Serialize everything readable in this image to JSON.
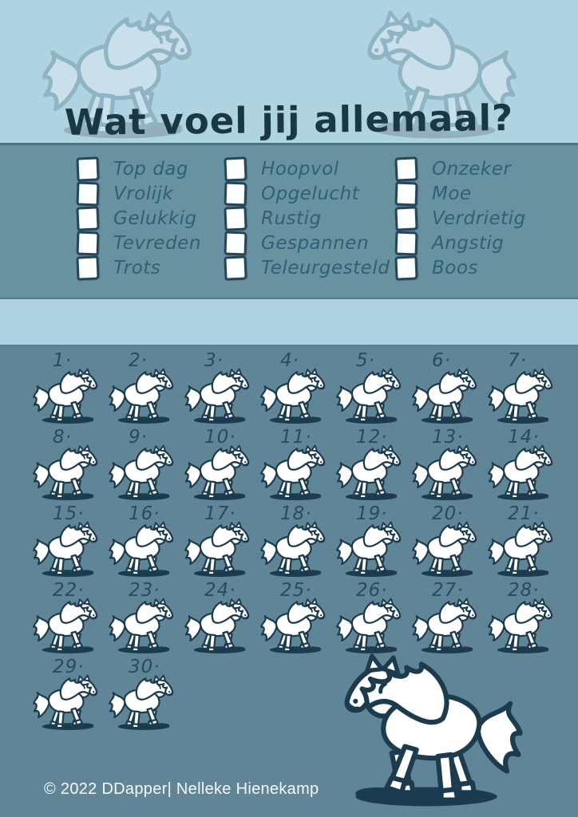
{
  "title": "Wat voel jij allemaal?",
  "copyright": "© 2022 DDapper| Nelleke Hienekamp",
  "checklist": {
    "columns": [
      [
        "Top dag",
        "Vrolijk",
        "Gelukkig",
        "Tevreden",
        "Trots"
      ],
      [
        "Hoopvol",
        "Opgelucht",
        "Rustig",
        "Gespannen",
        "Teleurgesteld"
      ],
      [
        "Onzeker",
        "Moe",
        "Verdrietig",
        "Angstig",
        "Boos"
      ]
    ],
    "checkbox_state": "unchecked"
  },
  "pony_grid": {
    "count": 30,
    "rows": [
      7,
      7,
      7,
      7,
      2
    ],
    "numbers": [
      "1·",
      "2·",
      "3·",
      "4·",
      "5·",
      "6·",
      "7·",
      "8·",
      "9·",
      "10·",
      "11·",
      "12·",
      "13·",
      "14·",
      "15·",
      "16·",
      "17·",
      "18·",
      "19·",
      "20·",
      "21·",
      "22·",
      "23·",
      "24·",
      "25·",
      "26·",
      "27·",
      "28·",
      "29·",
      "30·"
    ]
  },
  "illustrations": {
    "deco_pony_left": "light pony outline facing right",
    "deco_pony_right": "light pony outline facing left",
    "grid_pony": "white pony facing right",
    "big_pony": "large white pony facing left"
  },
  "colors": {
    "light_band": "#afd3e1",
    "checklist_band": "#68929f",
    "grid_band": "#5f8597",
    "ink": "#1d3b4e",
    "title_text": "#1a3744",
    "label_text": "#2f6077",
    "number_text": "#2b4a5e",
    "copyright_text": "#f5f9fb"
  }
}
